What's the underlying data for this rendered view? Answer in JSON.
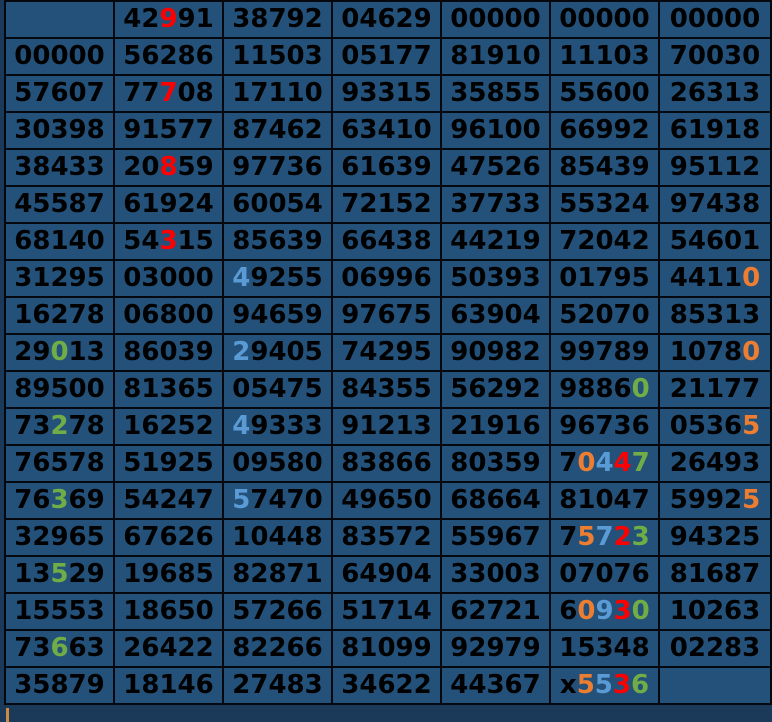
{
  "colors": {
    "page_background": "#1b3a5a",
    "cell_background": "#235179",
    "grid_border": "#05080e",
    "marker_orange": "#cc8a45",
    "digits": {
      "k": "#000000",
      "r": "#ff0000",
      "g": "#70ad47",
      "b": "#5b9bd5",
      "o": "#ed7d31"
    }
  },
  "grid": {
    "columns": 7,
    "rows": [
      [
        "",
        [
          [
            "42",
            "k"
          ],
          [
            "9",
            "r"
          ],
          [
            "91",
            "k"
          ]
        ],
        "38792",
        "04629",
        "00000",
        "00000",
        "00000"
      ],
      [
        "00000",
        "56286",
        "11503",
        "05177",
        "81910",
        "11103",
        "70030"
      ],
      [
        "57607",
        [
          [
            "77",
            "k"
          ],
          [
            "7",
            "r"
          ],
          [
            "08",
            "k"
          ]
        ],
        "17110",
        "93315",
        "35855",
        "55600",
        "26313"
      ],
      [
        "30398",
        "91577",
        "87462",
        "63410",
        "96100",
        "66992",
        "61918"
      ],
      [
        "38433",
        [
          [
            "20",
            "k"
          ],
          [
            "8",
            "r"
          ],
          [
            "59",
            "k"
          ]
        ],
        "97736",
        "61639",
        "47526",
        "85439",
        "95112"
      ],
      [
        "45587",
        "61924",
        "60054",
        "72152",
        "37733",
        "55324",
        "97438"
      ],
      [
        "68140",
        [
          [
            "54",
            "k"
          ],
          [
            "3",
            "r"
          ],
          [
            "15",
            "k"
          ]
        ],
        "85639",
        "66438",
        "44219",
        "72042",
        "54601"
      ],
      [
        "31295",
        "03000",
        [
          [
            "4",
            "b"
          ],
          [
            "9255",
            "k"
          ]
        ],
        "06996",
        "50393",
        "01795",
        [
          [
            "4411",
            "k"
          ],
          [
            "0",
            "o"
          ]
        ]
      ],
      [
        "16278",
        "06800",
        "94659",
        "97675",
        "63904",
        "52070",
        "85313"
      ],
      [
        [
          [
            "29",
            "k"
          ],
          [
            "0",
            "g"
          ],
          [
            "13",
            "k"
          ]
        ],
        "86039",
        [
          [
            "2",
            "b"
          ],
          [
            "9405",
            "k"
          ]
        ],
        "74295",
        "90982",
        "99789",
        [
          [
            "1078",
            "k"
          ],
          [
            "0",
            "o"
          ]
        ]
      ],
      [
        "89500",
        "81365",
        "05475",
        "84355",
        "56292",
        [
          [
            "9886",
            "k"
          ],
          [
            "0",
            "g"
          ]
        ],
        "21177"
      ],
      [
        [
          [
            "73",
            "k"
          ],
          [
            "2",
            "g"
          ],
          [
            "78",
            "k"
          ]
        ],
        "16252",
        [
          [
            "4",
            "b"
          ],
          [
            "9333",
            "k"
          ]
        ],
        "91213",
        "21916",
        "96736",
        [
          [
            "0536",
            "k"
          ],
          [
            "5",
            "o"
          ]
        ]
      ],
      [
        "76578",
        "51925",
        "09580",
        "83866",
        "80359",
        [
          [
            "7",
            "k"
          ],
          [
            "0",
            "o"
          ],
          [
            "4",
            "b"
          ],
          [
            "4",
            "r"
          ],
          [
            "7",
            "g"
          ]
        ],
        "26493"
      ],
      [
        [
          [
            "76",
            "k"
          ],
          [
            "3",
            "g"
          ],
          [
            "69",
            "k"
          ]
        ],
        "54247",
        [
          [
            "5",
            "b"
          ],
          [
            "7470",
            "k"
          ]
        ],
        "49650",
        "68664",
        "81047",
        [
          [
            "5992",
            "k"
          ],
          [
            "5",
            "o"
          ]
        ]
      ],
      [
        "32965",
        "67626",
        "10448",
        "83572",
        "55967",
        [
          [
            "7",
            "k"
          ],
          [
            "5",
            "o"
          ],
          [
            "7",
            "b"
          ],
          [
            "2",
            "r"
          ],
          [
            "3",
            "g"
          ]
        ],
        "94325"
      ],
      [
        [
          [
            "13",
            "k"
          ],
          [
            "5",
            "g"
          ],
          [
            "29",
            "k"
          ]
        ],
        "19685",
        "82871",
        "64904",
        "33003",
        "07076",
        "81687"
      ],
      [
        "15553",
        "18650",
        "57266",
        "51714",
        "62721",
        [
          [
            "6",
            "k"
          ],
          [
            "0",
            "o"
          ],
          [
            "9",
            "b"
          ],
          [
            "3",
            "r"
          ],
          [
            "0",
            "g"
          ]
        ],
        "10263"
      ],
      [
        [
          [
            "73",
            "k"
          ],
          [
            "6",
            "g"
          ],
          [
            "63",
            "k"
          ]
        ],
        "26422",
        "82266",
        "81099",
        "92979",
        "15348",
        "02283"
      ],
      [
        "35879",
        "18146",
        "27483",
        "34622",
        "44367",
        [
          [
            "x",
            "k"
          ],
          [
            "5",
            "o"
          ],
          [
            "5",
            "b"
          ],
          [
            "3",
            "r"
          ],
          [
            "6",
            "g"
          ]
        ],
        ""
      ]
    ]
  }
}
